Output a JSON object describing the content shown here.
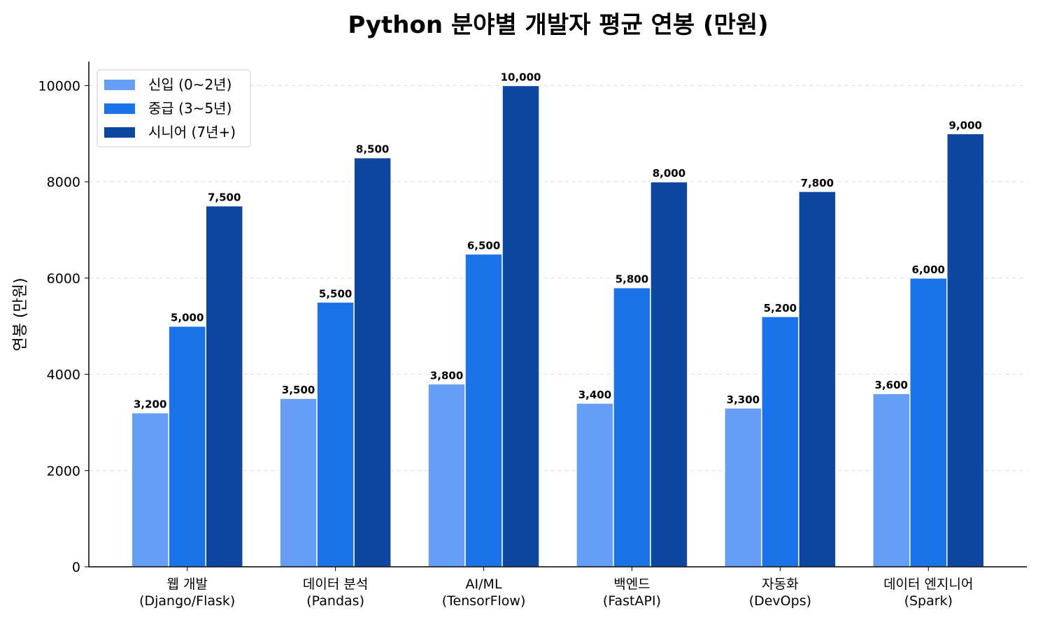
{
  "chart_data": {
    "type": "bar",
    "title": "Python 분야별 개발자 평균 연봉 (만원)",
    "xlabel": "",
    "ylabel": "연봉 (만원)",
    "ylim": [
      0,
      10500
    ],
    "yticks": [
      0,
      2000,
      4000,
      6000,
      8000,
      10000
    ],
    "grid": "y-dashed",
    "legend": "top-left",
    "categories": [
      [
        "웹 개발",
        "(Django/Flask)"
      ],
      [
        "데이터 분석",
        "(Pandas)"
      ],
      [
        "AI/ML",
        "(TensorFlow)"
      ],
      [
        "백엔드",
        "(FastAPI)"
      ],
      [
        "자동화",
        "(DevOps)"
      ],
      [
        "데이터 엔지니어",
        "(Spark)"
      ]
    ],
    "series": [
      {
        "name": "신입 (0~2년)",
        "color": "#669df6",
        "values": [
          3200,
          3500,
          3800,
          3400,
          3300,
          3600
        ],
        "labels": [
          "3,200",
          "3,500",
          "3,800",
          "3,400",
          "3,300",
          "3,600"
        ]
      },
      {
        "name": "중급 (3~5년)",
        "color": "#1a73e8",
        "values": [
          5000,
          5500,
          6500,
          5800,
          5200,
          6000
        ],
        "labels": [
          "5,000",
          "5,500",
          "6,500",
          "5,800",
          "5,200",
          "6,000"
        ]
      },
      {
        "name": "시니어 (7년+)",
        "color": "#0d47a1",
        "values": [
          7500,
          8500,
          10000,
          8000,
          7800,
          9000
        ],
        "labels": [
          "7,500",
          "8,500",
          "10,000",
          "8,000",
          "7,800",
          "9,000"
        ]
      }
    ]
  }
}
